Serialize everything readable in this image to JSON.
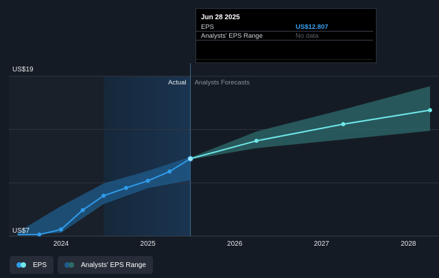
{
  "tooltip": {
    "date": "Jun 28 2025",
    "rows": [
      {
        "label": "EPS",
        "value": "US$12.807"
      },
      {
        "label": "Analysts' EPS Range",
        "value": "No data"
      }
    ]
  },
  "legend": [
    {
      "label": "EPS"
    },
    {
      "label": "Analysts' EPS Range"
    }
  ],
  "colors": {
    "background": "#151b24",
    "eps_line": "#2f9bea",
    "forecast_line": "#6fe7ea",
    "range_band": "#2e6c6c",
    "eps_value": "#3aa0f0",
    "muted": "#5c636b",
    "grid": "#2f3640"
  },
  "chart_data": {
    "type": "line",
    "y_labels": [
      "US$19",
      "US$7"
    ],
    "ylim": [
      7,
      19
    ],
    "xlim": [
      2023.4,
      2028.25
    ],
    "x_ticks": [
      "2024",
      "2025",
      "2026",
      "2027",
      "2028"
    ],
    "section_labels": {
      "actual": "Actual",
      "forecast": "Analysts Forecasts"
    },
    "split_x": 2025.49,
    "highlight_start": 2024.49,
    "grid": "horizontal",
    "series": [
      {
        "name": "EPS",
        "x": [
          2023.5,
          2023.75,
          2024.0,
          2024.25,
          2024.49,
          2024.75,
          2025.0,
          2025.25,
          2025.49
        ],
        "y": [
          7.12,
          7.12,
          7.5,
          8.95,
          10.03,
          10.62,
          11.15,
          11.85,
          12.807
        ]
      },
      {
        "name": "Analysts' EPS Range",
        "x": [
          2025.49,
          2026.25,
          2027.25,
          2028.25
        ],
        "y": [
          12.807,
          14.15,
          15.4,
          16.45
        ]
      }
    ],
    "historic_band": {
      "x": [
        2023.5,
        2024.0,
        2024.49,
        2025.0,
        2025.49
      ],
      "low": [
        7.05,
        7.25,
        9.4,
        10.6,
        11.2
      ],
      "high": [
        7.3,
        9.25,
        10.95,
        11.9,
        12.95
      ]
    },
    "forecast_band": {
      "x": [
        2025.49,
        2026.25,
        2027.25,
        2028.25
      ],
      "low": [
        12.75,
        13.6,
        14.25,
        14.9
      ],
      "high": [
        12.9,
        14.85,
        16.5,
        18.25
      ]
    }
  }
}
